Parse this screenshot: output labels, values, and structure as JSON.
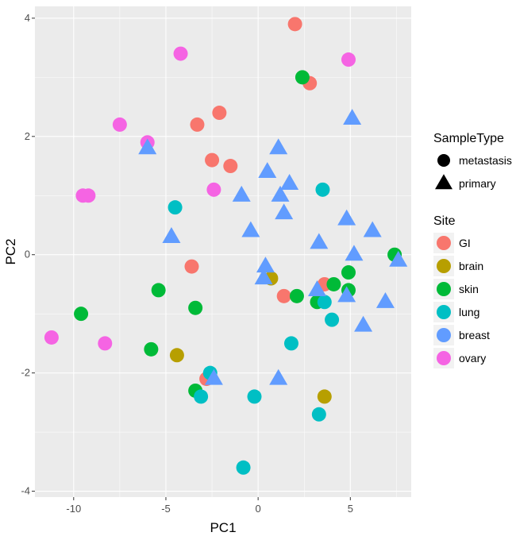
{
  "chart_data": {
    "type": "scatter",
    "title": "",
    "xlabel": "PC1",
    "ylabel": "PC2",
    "xlim": [
      -12.1,
      8.3
    ],
    "ylim": [
      -4.1,
      4.2
    ],
    "x_ticks": [
      -10,
      -5,
      0,
      5
    ],
    "x_tick_labels": [
      "-10",
      "-5",
      "0",
      "5"
    ],
    "y_ticks": [
      -4,
      -2,
      0,
      2,
      4
    ],
    "y_tick_labels": [
      "-4",
      "-2",
      "0",
      "2",
      "4"
    ],
    "grid": true,
    "legend_position": "right",
    "shape_legend": {
      "title": "SampleType",
      "entries": [
        {
          "label": "metastasis",
          "shape": "circle"
        },
        {
          "label": "primary",
          "shape": "triangle"
        }
      ]
    },
    "color_legend": {
      "title": "Site",
      "entries": [
        {
          "label": "GI",
          "color": "#F8766D"
        },
        {
          "label": "brain",
          "color": "#B79F00"
        },
        {
          "label": "skin",
          "color": "#00BA38"
        },
        {
          "label": "lung",
          "color": "#00BFC4"
        },
        {
          "label": "breast",
          "color": "#619CFF"
        },
        {
          "label": "ovary",
          "color": "#F564E3"
        }
      ]
    },
    "point_colors": {
      "GI": "#F8766D",
      "brain": "#B79F00",
      "skin": "#00BA38",
      "lung": "#00BFC4",
      "breast": "#619CFF",
      "ovary": "#F564E3"
    },
    "series": [
      {
        "name": "GI metastasis",
        "site": "GI",
        "shape": "circle",
        "points": [
          [
            2.0,
            3.9
          ],
          [
            2.8,
            2.9
          ],
          [
            -2.1,
            2.4
          ],
          [
            -3.3,
            2.2
          ],
          [
            -2.5,
            1.6
          ],
          [
            -1.5,
            1.5
          ],
          [
            -3.6,
            -0.2
          ],
          [
            3.6,
            -0.5
          ],
          [
            1.4,
            -0.7
          ],
          [
            -2.8,
            -2.1
          ]
        ]
      },
      {
        "name": "brain metastasis",
        "site": "brain",
        "shape": "circle",
        "points": [
          [
            0.7,
            -0.4
          ],
          [
            -4.4,
            -1.7
          ],
          [
            3.6,
            -2.4
          ]
        ]
      },
      {
        "name": "skin metastasis",
        "site": "skin",
        "shape": "circle",
        "points": [
          [
            2.4,
            3.0
          ],
          [
            7.4,
            0.0
          ],
          [
            4.1,
            -0.5
          ],
          [
            4.9,
            -0.3
          ],
          [
            4.9,
            -0.6
          ],
          [
            2.1,
            -0.7
          ],
          [
            3.2,
            -0.8
          ],
          [
            -5.4,
            -0.6
          ],
          [
            -3.4,
            -0.9
          ],
          [
            -9.6,
            -1.0
          ],
          [
            -5.8,
            -1.6
          ],
          [
            -3.4,
            -2.3
          ]
        ]
      },
      {
        "name": "lung metastasis",
        "site": "lung",
        "shape": "circle",
        "points": [
          [
            3.5,
            1.1
          ],
          [
            -4.5,
            0.8
          ],
          [
            3.6,
            -0.8
          ],
          [
            4.0,
            -1.1
          ],
          [
            1.8,
            -1.5
          ],
          [
            -2.6,
            -2.0
          ],
          [
            -3.1,
            -2.4
          ],
          [
            -0.2,
            -2.4
          ],
          [
            3.3,
            -2.7
          ],
          [
            -0.8,
            -3.6
          ]
        ]
      },
      {
        "name": "ovary metastasis",
        "site": "ovary",
        "shape": "circle",
        "points": [
          [
            -4.2,
            3.4
          ],
          [
            4.9,
            3.3
          ],
          [
            -7.5,
            2.2
          ],
          [
            -6.0,
            1.9
          ],
          [
            -2.4,
            1.1
          ],
          [
            -9.5,
            1.0
          ],
          [
            -9.2,
            1.0
          ],
          [
            -11.2,
            -1.4
          ],
          [
            -8.3,
            -1.5
          ]
        ]
      },
      {
        "name": "breast primary",
        "site": "breast",
        "shape": "triangle",
        "points": [
          [
            5.1,
            2.3
          ],
          [
            -6.0,
            1.8
          ],
          [
            1.1,
            1.8
          ],
          [
            0.5,
            1.4
          ],
          [
            1.7,
            1.2
          ],
          [
            1.2,
            1.0
          ],
          [
            -0.9,
            1.0
          ],
          [
            1.4,
            0.7
          ],
          [
            4.8,
            0.6
          ],
          [
            6.2,
            0.4
          ],
          [
            -0.4,
            0.4
          ],
          [
            -4.7,
            0.3
          ],
          [
            3.3,
            0.2
          ],
          [
            5.2,
            0.0
          ],
          [
            7.6,
            -0.1
          ],
          [
            0.4,
            -0.2
          ],
          [
            0.3,
            -0.4
          ],
          [
            3.2,
            -0.6
          ],
          [
            4.8,
            -0.7
          ],
          [
            6.9,
            -0.8
          ],
          [
            5.7,
            -1.2
          ],
          [
            -2.4,
            -2.1
          ],
          [
            1.1,
            -2.1
          ]
        ]
      }
    ]
  }
}
